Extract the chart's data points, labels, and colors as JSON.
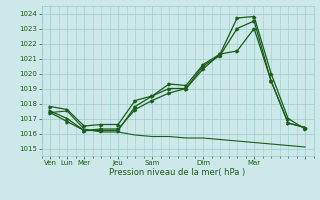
{
  "xlabel": "Pression niveau de la mer( hPa )",
  "ylim": [
    1014.5,
    1024.5
  ],
  "yticks": [
    1015,
    1016,
    1017,
    1018,
    1019,
    1020,
    1021,
    1022,
    1023,
    1024
  ],
  "bg_color": "#cce8e8",
  "grid_color": "#99cccc",
  "line_color": "#1a5c1a",
  "text_color": "#1a5c1a",
  "x_major_ticks": [
    0,
    2,
    4,
    8,
    12,
    18,
    24,
    30
  ],
  "x_major_labels": [
    "Ven",
    "Lun",
    "Mer",
    "Jeu",
    "Sam",
    "Dim",
    "Mar",
    ""
  ],
  "xlim": [
    -1,
    31
  ],
  "line1_x": [
    0,
    2,
    4,
    6,
    8,
    10,
    12,
    14,
    16,
    18,
    20,
    22,
    24,
    26,
    28,
    30
  ],
  "line1_y": [
    1017.4,
    1017.5,
    1016.3,
    1016.1,
    1016.1,
    1015.9,
    1015.8,
    1015.8,
    1015.7,
    1015.7,
    1015.6,
    1015.5,
    1015.4,
    1015.3,
    1015.2,
    1015.1
  ],
  "line2_x": [
    0,
    2,
    4,
    6,
    8,
    10,
    12,
    14,
    16,
    18,
    20,
    22,
    24,
    26,
    28,
    30
  ],
  "line2_y": [
    1017.8,
    1017.6,
    1016.5,
    1016.6,
    1016.6,
    1018.2,
    1018.5,
    1019.0,
    1019.0,
    1020.5,
    1021.2,
    1023.0,
    1023.5,
    1019.5,
    1016.7,
    1016.4
  ],
  "line3_x": [
    0,
    2,
    4,
    6,
    8,
    10,
    12,
    14,
    16,
    18,
    20,
    22,
    24,
    26,
    28,
    30
  ],
  "line3_y": [
    1017.4,
    1016.8,
    1016.2,
    1016.3,
    1016.3,
    1017.6,
    1018.2,
    1018.7,
    1019.0,
    1020.3,
    1021.3,
    1021.5,
    1023.0,
    1019.5,
    1016.7,
    1016.4
  ],
  "line4_x": [
    0,
    2,
    4,
    6,
    8,
    10,
    12,
    14,
    16,
    18,
    20,
    22,
    24,
    26,
    28,
    30
  ],
  "line4_y": [
    1017.5,
    1017.0,
    1016.2,
    1016.2,
    1016.2,
    1017.8,
    1018.5,
    1019.3,
    1019.2,
    1020.6,
    1021.3,
    1023.7,
    1023.8,
    1020.0,
    1017.0,
    1016.3
  ]
}
